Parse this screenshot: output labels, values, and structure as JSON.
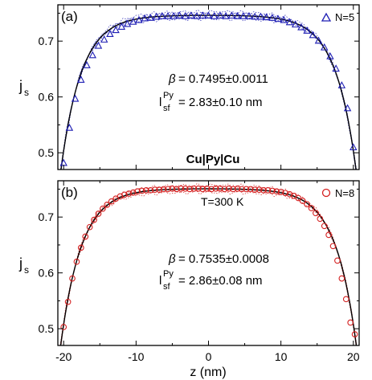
{
  "chart_data": [
    {
      "type": "line",
      "panel_label": "(a)",
      "legend": {
        "marker": "triangle",
        "label": "N=5",
        "placement": "top-right"
      },
      "annotations": {
        "beta": "= 0.7495±0.0011",
        "lsf": "= 2.83±0.10 nm",
        "middle_label": "Cu|Py|Cu"
      },
      "xlim": [
        -20.8,
        20.8
      ],
      "ylim": [
        0.47,
        0.765
      ],
      "yticks": [
        0.5,
        0.6,
        0.7
      ],
      "ylabel": "j",
      "ylabel_sub": "s",
      "color": "#1f1fb4",
      "series": [
        {
          "name": "N=5",
          "marker": "triangle",
          "x": [
            -20,
            -19.2,
            -18.4,
            -17.6,
            -16.8,
            -16,
            -15.2,
            -14.4,
            -13.6,
            -12.8,
            -12,
            -11.2,
            -10.4,
            -9.6,
            -8.8,
            -8,
            -7.2,
            -6.4,
            -5.6,
            -4.8,
            -4,
            -3.2,
            -2.4,
            -1.6,
            -0.8,
            0,
            0.8,
            1.6,
            2.4,
            3.2,
            4,
            4.8,
            5.6,
            6.4,
            7.2,
            8,
            8.8,
            9.6,
            10.4,
            11.2,
            12,
            12.8,
            13.6,
            14.4,
            15.2,
            16,
            16.8,
            17.6,
            18.4,
            19.2,
            20
          ],
          "y": [
            0.482,
            0.545,
            0.597,
            0.631,
            0.657,
            0.675,
            0.692,
            0.703,
            0.713,
            0.72,
            0.726,
            0.731,
            0.735,
            0.738,
            0.741,
            0.742,
            0.744,
            0.745,
            0.745,
            0.745,
            0.746,
            0.745,
            0.746,
            0.745,
            0.746,
            0.746,
            0.745,
            0.746,
            0.745,
            0.746,
            0.745,
            0.745,
            0.745,
            0.744,
            0.744,
            0.743,
            0.742,
            0.74,
            0.738,
            0.734,
            0.73,
            0.725,
            0.719,
            0.711,
            0.701,
            0.689,
            0.673,
            0.651,
            0.621,
            0.58,
            0.51
          ]
        }
      ]
    },
    {
      "type": "line",
      "panel_label": "(b)",
      "legend": {
        "marker": "circle",
        "label": "N=8",
        "placement": "top-right"
      },
      "annotations": {
        "temperature": "T=300 K",
        "beta": "= 0.7535±0.0008",
        "lsf": "= 2.86±0.08 nm"
      },
      "xlim": [
        -20.8,
        20.8
      ],
      "ylim": [
        0.47,
        0.765
      ],
      "xticks": [
        -20,
        -10,
        0,
        10,
        20
      ],
      "yticks": [
        0.5,
        0.6,
        0.7
      ],
      "xlabel": "z (nm)",
      "ylabel": "j",
      "ylabel_sub": "s",
      "color": "#d42020",
      "series": [
        {
          "name": "N=8",
          "marker": "circle",
          "x": [
            -20,
            -19.4,
            -18.8,
            -18.2,
            -17.6,
            -17,
            -16.4,
            -15.8,
            -15.2,
            -14.6,
            -14,
            -13.4,
            -12.8,
            -12.2,
            -11.6,
            -11,
            -10.4,
            -9.8,
            -9.2,
            -8.6,
            -8,
            -7.4,
            -6.8,
            -6.2,
            -5.6,
            -5,
            -4.4,
            -3.8,
            -3.2,
            -2.6,
            -2,
            -1.4,
            -0.8,
            -0.2,
            0.4,
            1,
            1.6,
            2.2,
            2.8,
            3.4,
            4,
            4.6,
            5.2,
            5.8,
            6.4,
            7,
            7.6,
            8.2,
            8.8,
            9.4,
            10,
            10.6,
            11.2,
            11.8,
            12.4,
            13,
            13.6,
            14.2,
            14.8,
            15.4,
            16,
            16.6,
            17.2,
            17.8,
            18.4,
            19,
            19.6,
            20.2
          ],
          "y": [
            0.503,
            0.548,
            0.59,
            0.62,
            0.645,
            0.665,
            0.682,
            0.695,
            0.706,
            0.715,
            0.722,
            0.728,
            0.733,
            0.737,
            0.74,
            0.742,
            0.744,
            0.746,
            0.747,
            0.748,
            0.748,
            0.749,
            0.749,
            0.75,
            0.75,
            0.751,
            0.75,
            0.751,
            0.751,
            0.75,
            0.751,
            0.751,
            0.75,
            0.751,
            0.75,
            0.751,
            0.751,
            0.75,
            0.751,
            0.75,
            0.751,
            0.75,
            0.75,
            0.75,
            0.749,
            0.749,
            0.748,
            0.748,
            0.747,
            0.746,
            0.745,
            0.743,
            0.741,
            0.738,
            0.734,
            0.729,
            0.723,
            0.716,
            0.707,
            0.697,
            0.684,
            0.668,
            0.648,
            0.622,
            0.59,
            0.553,
            0.511,
            0.49
          ]
        }
      ]
    }
  ]
}
